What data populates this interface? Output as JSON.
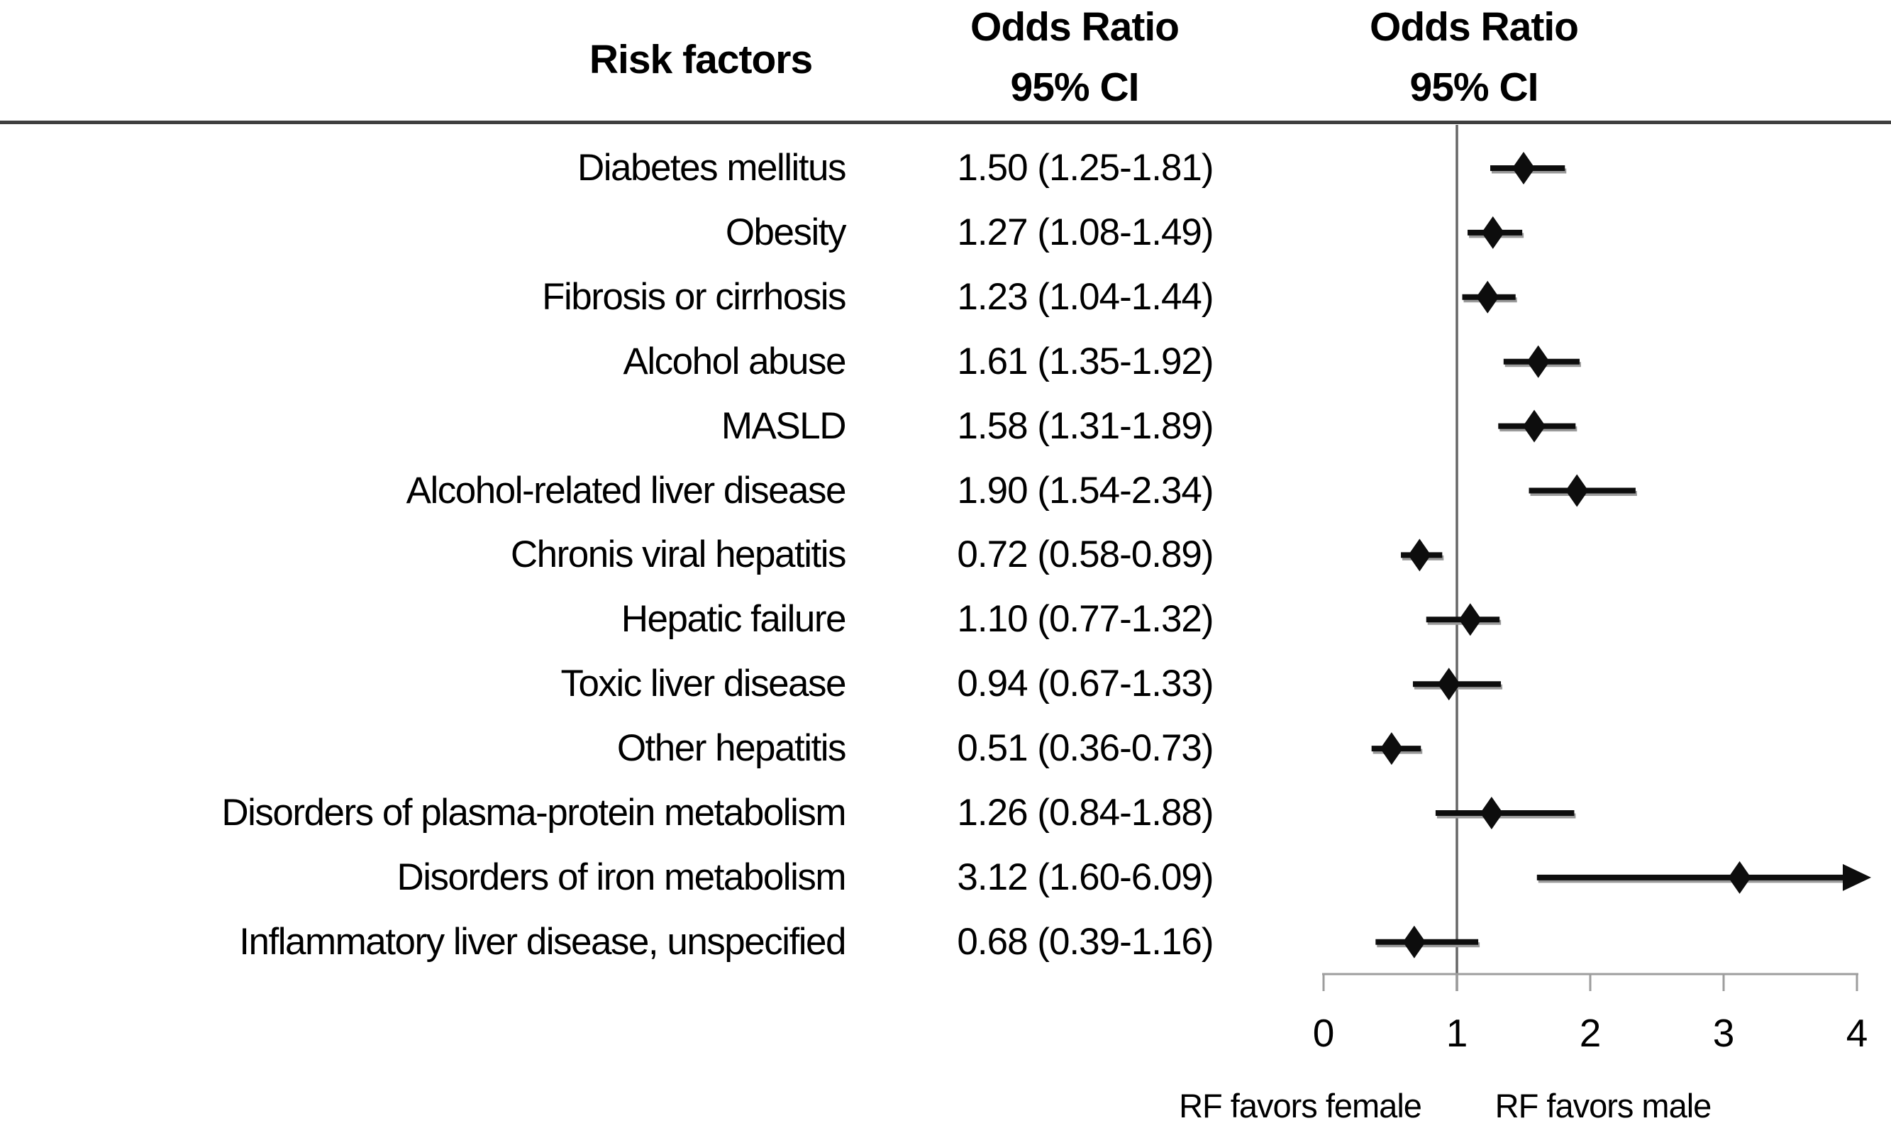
{
  "header": {
    "risk_factors_label": "Risk factors",
    "or_text_column": {
      "line1": "Odds Ratio",
      "line2": "95% CI"
    },
    "or_plot_column": {
      "line1": "Odds Ratio",
      "line2": "95% CI"
    }
  },
  "chart_data": {
    "type": "scatter",
    "variant": "forest-plot",
    "title": "",
    "xlabel": "",
    "x_axis": {
      "range": [
        0,
        4
      ],
      "ticks": [
        0,
        1,
        2,
        3,
        4
      ],
      "reference_line_x": 1,
      "grid": false
    },
    "rows": [
      {
        "label": "Diabetes mellitus",
        "or_text": "1.50 (1.25-1.81)",
        "or": 1.5,
        "ci_low": 1.25,
        "ci_high": 1.81,
        "arrow": false
      },
      {
        "label": "Obesity",
        "or_text": "1.27 (1.08-1.49)",
        "or": 1.27,
        "ci_low": 1.08,
        "ci_high": 1.49,
        "arrow": false
      },
      {
        "label": "Fibrosis or cirrhosis",
        "or_text": "1.23 (1.04-1.44)",
        "or": 1.23,
        "ci_low": 1.04,
        "ci_high": 1.44,
        "arrow": false
      },
      {
        "label": "Alcohol abuse",
        "or_text": "1.61 (1.35-1.92)",
        "or": 1.61,
        "ci_low": 1.35,
        "ci_high": 1.92,
        "arrow": false
      },
      {
        "label": "MASLD",
        "or_text": "1.58 (1.31-1.89)",
        "or": 1.58,
        "ci_low": 1.31,
        "ci_high": 1.89,
        "arrow": false
      },
      {
        "label": "Alcohol-related liver disease",
        "or_text": "1.90 (1.54-2.34)",
        "or": 1.9,
        "ci_low": 1.54,
        "ci_high": 2.34,
        "arrow": false
      },
      {
        "label": "Chronis viral hepatitis",
        "or_text": "0.72 (0.58-0.89)",
        "or": 0.72,
        "ci_low": 0.58,
        "ci_high": 0.89,
        "arrow": false
      },
      {
        "label": "Hepatic failure",
        "or_text": "1.10 (0.77-1.32)",
        "or": 1.1,
        "ci_low": 0.77,
        "ci_high": 1.32,
        "arrow": false
      },
      {
        "label": "Toxic liver disease",
        "or_text": "0.94 (0.67-1.33)",
        "or": 0.94,
        "ci_low": 0.67,
        "ci_high": 1.33,
        "arrow": false
      },
      {
        "label": "Other hepatitis",
        "or_text": "0.51 (0.36-0.73)",
        "or": 0.51,
        "ci_low": 0.36,
        "ci_high": 0.73,
        "arrow": false
      },
      {
        "label": "Disorders of plasma-protein metabolism",
        "or_text": "1.26 (0.84-1.88)",
        "or": 1.26,
        "ci_low": 0.84,
        "ci_high": 1.88,
        "arrow": false
      },
      {
        "label": "Disorders of iron metabolism",
        "or_text": "3.12 (1.60-6.09)",
        "or": 3.12,
        "ci_low": 1.6,
        "ci_high": 6.09,
        "arrow": true
      },
      {
        "label": "Inflammatory liver disease, unspecified",
        "or_text": "0.68 (0.39-1.16)",
        "or": 0.68,
        "ci_low": 0.39,
        "ci_high": 1.16,
        "arrow": false
      }
    ],
    "footer": {
      "favors_left": "RF favors female",
      "favors_right": "RF favors male"
    },
    "legend_position": "none",
    "colors": {
      "marker": "#0d0d0d",
      "ci_line": "#0d0d0d",
      "ci_shadow": "#9a9a9a",
      "reference_line": "#666666",
      "axis_line": "#9d9d9d",
      "divider_line": "#3f3f3f",
      "text": "#000000"
    }
  }
}
